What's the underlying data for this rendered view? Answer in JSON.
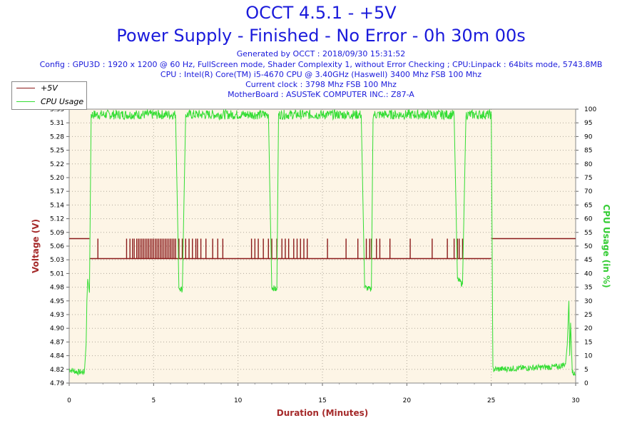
{
  "header": {
    "title": "OCCT 4.5.1 - +5V",
    "subtitle": "Power Supply - Finished - No Error - 0h 30m 00s",
    "info_lines": [
      "Generated by OCCT : 2018/09/30 15:31:52",
      "Config : GPU3D : 1920 x 1200 @ 60 Hz, FullScreen mode, Shader Complexity 1, without Error Checking ; CPU:Linpack : 64bits mode, 5743.8MB",
      "CPU : Intel(R) Core(TM) i5-4670 CPU @ 3.40GHz (Haswell) 3400 Mhz FSB 100 Mhz",
      "Current clock : 3798 Mhz FSB 100 Mhz",
      "MotherBoard : ASUSTeK COMPUTER INC.: Z87-A"
    ]
  },
  "legend": {
    "items": [
      {
        "label": "+5V",
        "color": "#8b1a1a"
      },
      {
        "label": "CPU Usage",
        "color": "#33dd33"
      }
    ]
  },
  "colors": {
    "plot_bg": "#fdf5e6",
    "grid": "#b0a89a",
    "voltage": "#8b1a1a",
    "cpu": "#33dd33",
    "axis_voltage": "#a52a2a",
    "axis_cpu": "#33cc33",
    "axis_x": "#a52a2a"
  },
  "chart_data": {
    "type": "line",
    "xlabel": "Duration (Minutes)",
    "ylabel": "Voltage (V)",
    "y2label": "CPU Usage (in %)",
    "xlim": [
      0,
      30
    ],
    "ylim": [
      4.79,
      5.34
    ],
    "y2lim": [
      0,
      100
    ],
    "x_ticks": [
      "0",
      "5",
      "10",
      "15",
      "20",
      "25",
      "30"
    ],
    "y_ticks": [
      "4.79",
      "4.82",
      "4.84",
      "4.87",
      "4.90",
      "4.93",
      "4.95",
      "4.98",
      "5.01",
      "5.03",
      "5.06",
      "5.09",
      "5.12",
      "5.14",
      "5.17",
      "5.20",
      "5.22",
      "5.25",
      "5.28",
      "5.31",
      "5.33"
    ],
    "y2_ticks": [
      "0",
      "5",
      "10",
      "15",
      "20",
      "25",
      "30",
      "35",
      "40",
      "45",
      "50",
      "55",
      "60",
      "65",
      "70",
      "75",
      "80",
      "85",
      "90",
      "95",
      "100"
    ],
    "grid": true,
    "legend_position": "top-left",
    "series": [
      {
        "name": "+5V",
        "axis": "left",
        "baseline_segments": [
          {
            "x": [
              0,
              1.2
            ],
            "y": 5.08
          },
          {
            "x": [
              1.2,
              25.0
            ],
            "y": 5.04
          },
          {
            "x": [
              25.0,
              30.0
            ],
            "y": 5.08
          }
        ],
        "spikes_to": 5.08,
        "spike_x": [
          1.7,
          3.4,
          3.6,
          3.75,
          3.85,
          4.0,
          4.1,
          4.2,
          4.3,
          4.4,
          4.5,
          4.6,
          4.7,
          4.8,
          4.9,
          5.0,
          5.1,
          5.2,
          5.3,
          5.4,
          5.5,
          5.6,
          5.7,
          5.8,
          5.9,
          6.0,
          6.1,
          6.2,
          6.3,
          6.5,
          6.7,
          6.9,
          7.1,
          7.3,
          7.5,
          7.6,
          7.8,
          8.1,
          8.5,
          8.8,
          9.1,
          10.8,
          11.0,
          11.2,
          11.5,
          11.8,
          12.0,
          12.3,
          12.6,
          12.8,
          13.0,
          13.3,
          13.5,
          13.7,
          13.9,
          14.1,
          15.3,
          16.4,
          17.1,
          17.6,
          17.8,
          17.9,
          18.2,
          18.4,
          19.0,
          20.2,
          21.5,
          22.4,
          22.8,
          23.0,
          23.1,
          23.3
        ]
      },
      {
        "name": "CPU Usage",
        "axis": "right",
        "points": [
          [
            0,
            5
          ],
          [
            0.5,
            4
          ],
          [
            0.9,
            4
          ],
          [
            1.0,
            14
          ],
          [
            1.05,
            30
          ],
          [
            1.1,
            38
          ],
          [
            1.2,
            33
          ],
          [
            1.3,
            98
          ],
          [
            6.3,
            98
          ],
          [
            6.5,
            35
          ],
          [
            6.7,
            34
          ],
          [
            6.9,
            98
          ],
          [
            11.8,
            98
          ],
          [
            12.0,
            35
          ],
          [
            12.3,
            34
          ],
          [
            12.4,
            98
          ],
          [
            17.3,
            98
          ],
          [
            17.5,
            35
          ],
          [
            17.9,
            34
          ],
          [
            18.0,
            98
          ],
          [
            22.8,
            98
          ],
          [
            23.0,
            38
          ],
          [
            23.3,
            36
          ],
          [
            23.5,
            98
          ],
          [
            25.0,
            98
          ],
          [
            25.1,
            5
          ],
          [
            29.0,
            6
          ],
          [
            29.4,
            7
          ],
          [
            29.5,
            14
          ],
          [
            29.6,
            30
          ],
          [
            29.65,
            10
          ],
          [
            29.7,
            22
          ],
          [
            29.8,
            4
          ],
          [
            30.0,
            3
          ]
        ]
      }
    ]
  }
}
